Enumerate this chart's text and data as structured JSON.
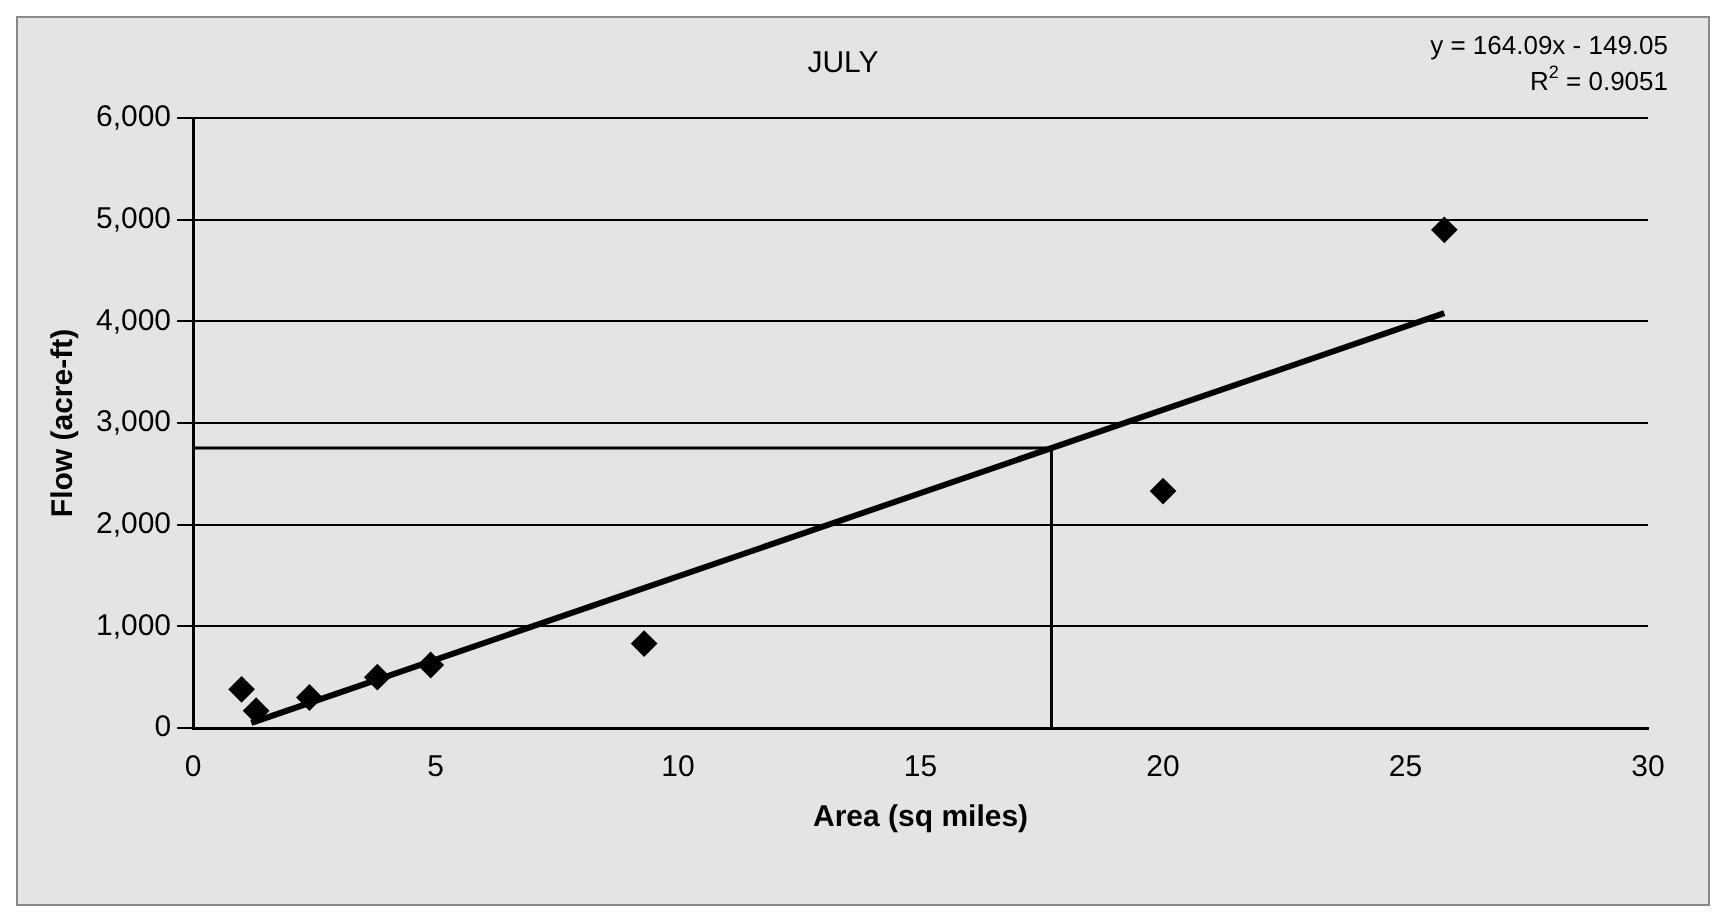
{
  "chart_data": {
    "type": "scatter",
    "title": "JULY",
    "xlabel": "Area (sq miles)",
    "ylabel": "Flow (acre-ft)",
    "x": [
      1.0,
      1.3,
      2.4,
      3.8,
      4.9,
      9.3,
      20.0,
      25.8
    ],
    "series": [
      {
        "color": "#000000",
        "values": [
          380,
          170,
          300,
          500,
          620,
          830,
          2330,
          4900
        ],
        "marker": "diamond"
      },
      {
        "type": "line",
        "color": "#000000",
        "x": [
          1.2,
          25.8
        ],
        "values": [
          50,
          4080
        ],
        "marker": "none"
      }
    ],
    "xlim": [
      0,
      30
    ],
    "xticks": [
      0,
      5,
      10,
      15,
      20,
      25,
      30
    ],
    "ylim": [
      0,
      6000
    ],
    "yticks": [
      {
        "value": 0,
        "label": "0"
      },
      {
        "value": 1000,
        "label": "1,000"
      },
      {
        "value": 2000,
        "label": "2,000"
      },
      {
        "value": 3000,
        "label": "3,000"
      },
      {
        "value": 4000,
        "label": "4,000"
      },
      {
        "value": 5000,
        "label": "5,000"
      },
      {
        "value": 6000,
        "label": "6,000"
      }
    ],
    "grid": "y",
    "legend": false,
    "ref_lines": [
      {
        "axis": "x",
        "value": 17.7,
        "color": "#000000"
      },
      {
        "axis": "y",
        "value": 2755,
        "color": "#000000"
      }
    ],
    "annotations": [
      "y = 164.09x - 149.05",
      "R$^{2}$ = 0.9051"
    ]
  }
}
